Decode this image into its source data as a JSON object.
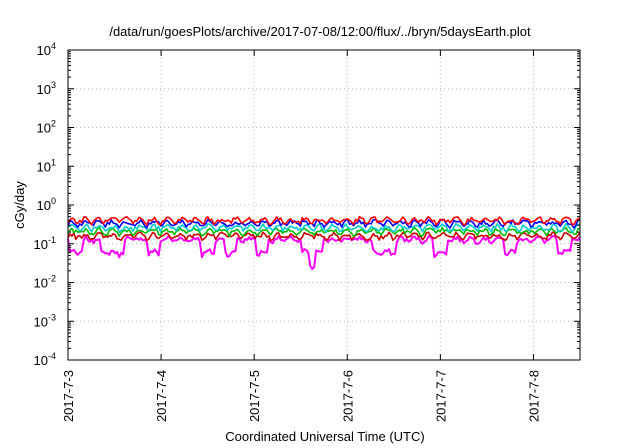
{
  "chart_data": {
    "type": "line",
    "title": "/data/run/goesPlots/archive/2017-07-08/12:00/flux/../bryn/5daysEarth.plot",
    "xlabel": "Coordinated Universal Time (UTC)",
    "ylabel": "cGy/day",
    "yscale": "log",
    "ylim": [
      0.0001,
      10000
    ],
    "xlim": [
      "2017-07-03",
      "2017-07-08 12:00"
    ],
    "grid": true,
    "y_ticks": [
      {
        "base": "10",
        "exp": "-4"
      },
      {
        "base": "10",
        "exp": "-3"
      },
      {
        "base": "10",
        "exp": "-2"
      },
      {
        "base": "10",
        "exp": "-1"
      },
      {
        "base": "10",
        "exp": "0"
      },
      {
        "base": "10",
        "exp": "1"
      },
      {
        "base": "10",
        "exp": "2"
      },
      {
        "base": "10",
        "exp": "3"
      },
      {
        "base": "10",
        "exp": "4"
      }
    ],
    "x_ticks": [
      "2017-7-3",
      "2017-7-4",
      "2017-7-5",
      "2017-7-6",
      "2017-7-7",
      "2017-7-8"
    ],
    "series": [
      {
        "color": "#ff00ff",
        "level": 0.13,
        "dips": true,
        "x": [
          "2017-07-03",
          "2017-07-08 12:00"
        ],
        "y": [
          0.13,
          0.13
        ]
      },
      {
        "color": "#cc0000",
        "level": 0.16,
        "x": [
          "2017-07-03",
          "2017-07-08 12:00"
        ],
        "y": [
          0.16,
          0.16
        ]
      },
      {
        "color": "#00bb00",
        "level": 0.21,
        "x": [
          "2017-07-03",
          "2017-07-08 12:00"
        ],
        "y": [
          0.21,
          0.21
        ]
      },
      {
        "color": "#00cccc",
        "level": 0.26,
        "x": [
          "2017-07-03",
          "2017-07-08 12:00"
        ],
        "y": [
          0.26,
          0.26
        ]
      },
      {
        "color": "#0000ff",
        "level": 0.34,
        "x": [
          "2017-07-03",
          "2017-07-08 12:00"
        ],
        "y": [
          0.34,
          0.34
        ]
      },
      {
        "color": "#ff0000",
        "level": 0.4,
        "x": [
          "2017-07-03",
          "2017-07-08 12:00"
        ],
        "y": [
          0.4,
          0.4
        ]
      }
    ],
    "dip_times": [
      "2017-07-03 02:00",
      "2017-07-03 10:00",
      "2017-07-03 13:00",
      "2017-07-03 22:00",
      "2017-07-04 12:00",
      "2017-07-04 18:00",
      "2017-07-05 02:00",
      "2017-07-05 14:00",
      "2017-07-05 16:00",
      "2017-07-06 08:00",
      "2017-07-06 11:00",
      "2017-07-07 00:00",
      "2017-07-07 18:00",
      "2017-07-08 08:00"
    ]
  }
}
